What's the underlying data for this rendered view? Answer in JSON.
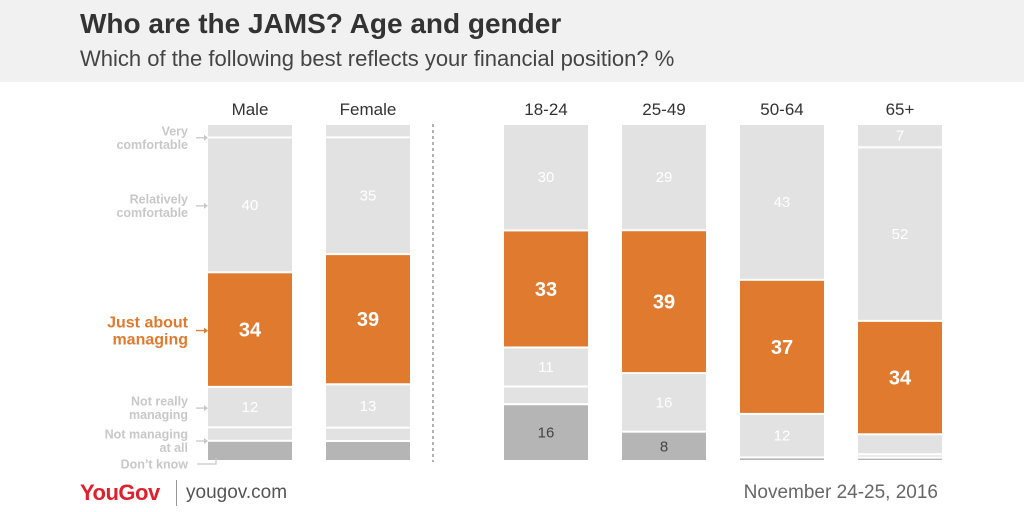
{
  "title": "Who are the JAMS? Age and gender",
  "subtitle": "Which of the following best reflects your financial position? %",
  "footer": {
    "brand": "YouGov",
    "url": "yougov.com",
    "date": "November 24-25, 2016"
  },
  "colors": {
    "orange": "#e07a2e",
    "light_gray": "#e2e2e3",
    "dark_gray": "#b5b5b5",
    "category_label": "#c8c8c8",
    "highlight_label": "#e07a2e"
  },
  "chart_data": {
    "type": "bar",
    "stacked": true,
    "normalized": true,
    "categories": [
      "Male",
      "Female",
      "18-24",
      "25-49",
      "50-64",
      "65+"
    ],
    "series": [
      {
        "name": "Very comfortable",
        "values": [
          4,
          4,
          0,
          0,
          0,
          7
        ]
      },
      {
        "name": "Relatively comfortable",
        "values": [
          40,
          35,
          30,
          29,
          43,
          52
        ]
      },
      {
        "name": "Just about managing",
        "values": [
          34,
          39,
          33,
          39,
          37,
          34
        ]
      },
      {
        "name": "Not really managing",
        "values": [
          12,
          13,
          11,
          16,
          12,
          6
        ]
      },
      {
        "name": "Not managing at all",
        "values": [
          4,
          4,
          5,
          0,
          0,
          1
        ]
      },
      {
        "name": "Don't know",
        "values": [
          6,
          6,
          16,
          8,
          1,
          1
        ]
      }
    ],
    "data_labels": [
      [
        null,
        "40",
        "34",
        "12",
        null,
        null
      ],
      [
        null,
        "35",
        "39",
        "13",
        null,
        null
      ],
      [
        null,
        "30",
        "33",
        "11",
        null,
        "16"
      ],
      [
        null,
        "29",
        "39",
        "16",
        null,
        "8"
      ],
      [
        null,
        "43",
        "37",
        "12",
        null,
        null
      ],
      [
        "7",
        "52",
        "34",
        null,
        null,
        null
      ]
    ],
    "row_labels": [
      [
        "Very",
        "comfortable"
      ],
      [
        "Relatively",
        "comfortable"
      ],
      [
        "Just about",
        "managing"
      ],
      [
        "Not really",
        "managing"
      ],
      [
        "Not managing",
        "at all"
      ],
      [
        "Don’t know"
      ]
    ],
    "highlight_series": 2,
    "group_divider_after": 1
  }
}
